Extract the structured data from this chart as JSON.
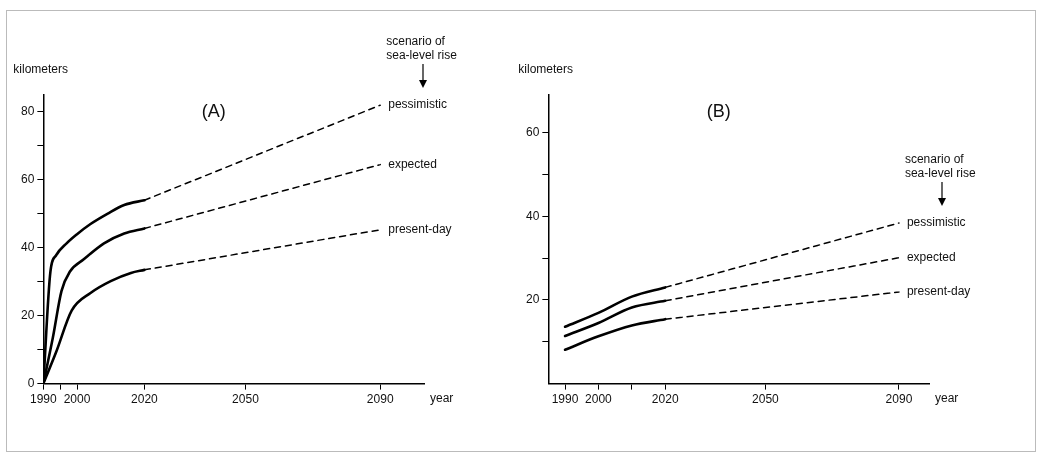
{
  "chart_data": [
    {
      "type": "line",
      "title": "(A)",
      "ylabel": "kilometers",
      "xlabel": "year",
      "legend_title": "scenario of sea-level rise",
      "xlim": [
        1990,
        2103
      ],
      "xticks": [
        1990,
        {
          "value": 1995,
          "label": null
        },
        2000,
        2020,
        2050,
        2090
      ],
      "ylim": [
        0,
        85
      ],
      "yticks": [
        0,
        {
          "value": 10,
          "label": null
        },
        20,
        {
          "value": 30,
          "label": null
        },
        40,
        {
          "value": 50,
          "label": null
        },
        60,
        {
          "value": 70,
          "label": null
        },
        80
      ],
      "series": [
        {
          "color": "#000000",
          "line_style": "solid",
          "x": [
            1990,
            1992.1,
            1993.8,
            1996.9,
            2000,
            2004,
            2009,
            2014,
            2020
          ],
          "values": [
            0,
            33,
            37.8,
            41.3,
            44,
            47,
            50,
            52.6,
            54
          ]
        },
        {
          "color": "#000000",
          "line_style": "solid",
          "x": [
            1990,
            1992.8,
            1995.4,
            1997.9,
            2002,
            2008,
            2014,
            2020
          ],
          "values": [
            0,
            13.4,
            27.3,
            33,
            36.6,
            41.3,
            44.2,
            45.7
          ]
        },
        {
          "color": "#000000",
          "line_style": "solid",
          "x": [
            1990,
            1993.8,
            1998.4,
            2004,
            2010,
            2016,
            2020
          ],
          "values": [
            0,
            9.3,
            21.5,
            26.7,
            30.2,
            32.6,
            33.5
          ]
        },
        {
          "name": "pessimistic",
          "color": "#000000",
          "line_style": "dashed",
          "x": [
            2020,
            2090
          ],
          "values": [
            54,
            82
          ]
        },
        {
          "name": "expected",
          "color": "#000000",
          "line_style": "dashed",
          "x": [
            2020,
            2090
          ],
          "values": [
            45.7,
            64.5
          ]
        },
        {
          "name": "present-day",
          "color": "#000000",
          "line_style": "dashed",
          "x": [
            2020,
            2090
          ],
          "values": [
            33.5,
            45.3
          ]
        }
      ]
    },
    {
      "type": "line",
      "title": "(B)",
      "ylabel": "kilometers",
      "xlabel": "year",
      "legend_title": "scenario of sea-level rise",
      "xlim": [
        1985,
        2099
      ],
      "xticks": [
        1990,
        2000,
        {
          "value": 2010,
          "label": null
        },
        2020,
        2050,
        2090
      ],
      "ylim": [
        0,
        69
      ],
      "yticks": [
        {
          "value": 10,
          "label": null
        },
        20,
        {
          "value": 30,
          "label": null
        },
        40,
        {
          "value": 50,
          "label": null
        },
        60
      ],
      "series": [
        {
          "color": "#000000",
          "line_style": "solid",
          "x": [
            1990,
            2000,
            2010,
            2020
          ],
          "values": [
            13.6,
            16.9,
            20.8,
            23
          ]
        },
        {
          "color": "#000000",
          "line_style": "solid",
          "x": [
            1990,
            2000,
            2010,
            2020
          ],
          "values": [
            11.4,
            14.5,
            18.2,
            19.8
          ]
        },
        {
          "color": "#000000",
          "line_style": "solid",
          "x": [
            1990,
            2000,
            2010,
            2020
          ],
          "values": [
            8.1,
            11.3,
            13.9,
            15.4
          ]
        },
        {
          "name": "pessimistic",
          "color": "#000000",
          "line_style": "dashed",
          "x": [
            2020,
            2090
          ],
          "values": [
            23,
            38.4
          ]
        },
        {
          "name": "expected",
          "color": "#000000",
          "line_style": "dashed",
          "x": [
            2020,
            2090
          ],
          "values": [
            19.8,
            30.1
          ]
        },
        {
          "name": "present-day",
          "color": "#000000",
          "line_style": "dashed",
          "x": [
            2020,
            2090
          ],
          "values": [
            15.4,
            21.9
          ]
        }
      ]
    }
  ]
}
